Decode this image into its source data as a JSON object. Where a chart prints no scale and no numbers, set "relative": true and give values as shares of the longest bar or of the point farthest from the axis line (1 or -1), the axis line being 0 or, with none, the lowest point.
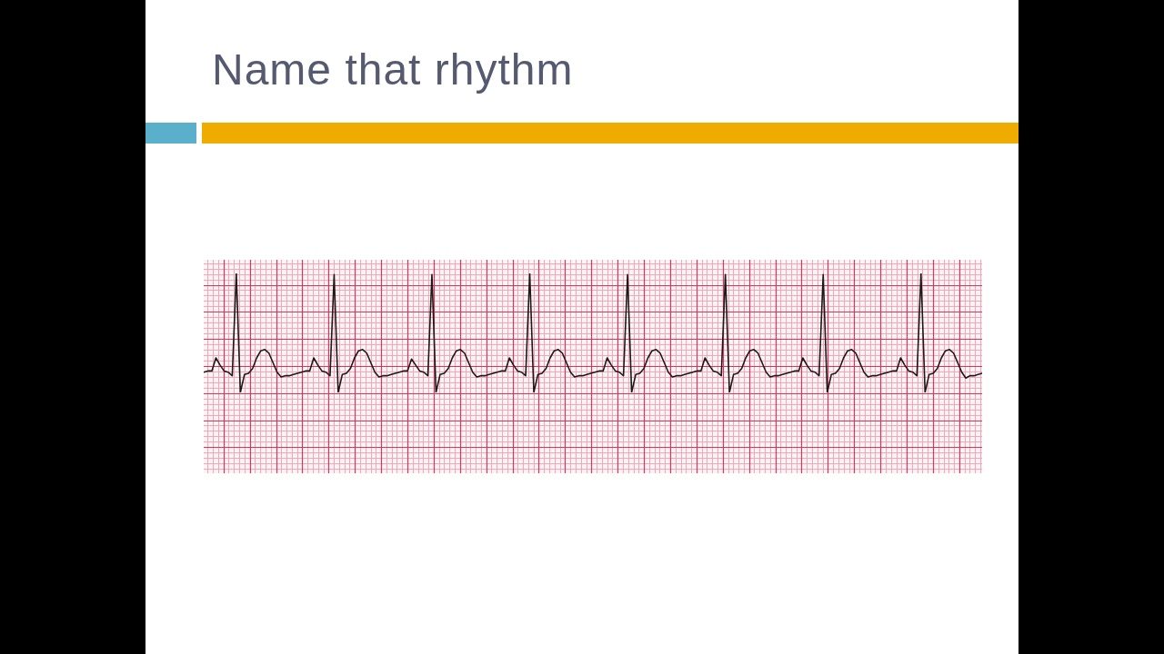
{
  "chart_data": {
    "type": "line",
    "title": "Name that rhythm",
    "relative": true,
    "grid": true,
    "color": "#1a1a1a",
    "categories": [
      null,
      null,
      null,
      null,
      null,
      null,
      null,
      null,
      null,
      null,
      null,
      null,
      null,
      null,
      null,
      null,
      null,
      null,
      null,
      null,
      null,
      null,
      null,
      null,
      null,
      null,
      null,
      null,
      null,
      null,
      null,
      null,
      null,
      null,
      null,
      null,
      null,
      null,
      null,
      null,
      null,
      null,
      null,
      null,
      null,
      null,
      null,
      null,
      null,
      null,
      null,
      null,
      null,
      null,
      null,
      null,
      null,
      null,
      null,
      null,
      null,
      null,
      null,
      null,
      null,
      null,
      null,
      null,
      null,
      null,
      null,
      null,
      null,
      null,
      null,
      null,
      null,
      null,
      null,
      null,
      null,
      null,
      null,
      null,
      null,
      null,
      null,
      null,
      null,
      null,
      null,
      null,
      null,
      null,
      null,
      null,
      null,
      null,
      null,
      null,
      null,
      null,
      null,
      null,
      null,
      null,
      null,
      null,
      null,
      null,
      null,
      null,
      null,
      null,
      null,
      null,
      null,
      null,
      null,
      null,
      null,
      null,
      null,
      null,
      null,
      null,
      null,
      null,
      null,
      null,
      null,
      null,
      null,
      null,
      null,
      null,
      null,
      null,
      null,
      null,
      null,
      null,
      null,
      null,
      null,
      null,
      null,
      null,
      null,
      null,
      null,
      null,
      null,
      null,
      null,
      null,
      null,
      null,
      null,
      null,
      null,
      null,
      null,
      null,
      null,
      null,
      null,
      null,
      null,
      null,
      null,
      null,
      null,
      null,
      null,
      null,
      null,
      null,
      null,
      null,
      null,
      null,
      null,
      null,
      null,
      null,
      null,
      null,
      null,
      null,
      null,
      null
    ],
    "values": [
      0.17,
      0.18,
      0.18,
      0.29,
      0.23,
      0.18,
      0.17,
      0.14,
      1,
      0,
      0.15,
      0.16,
      0.2,
      0.29,
      0.35,
      0.36,
      0.33,
      0.25,
      0.17,
      0.13,
      0.14,
      0.14,
      0.15,
      0.16,
      0.17,
      0.18,
      0.18,
      0.29,
      0.23,
      0.18,
      0.17,
      0.14,
      0.99,
      0,
      0.15,
      0.16,
      0.2,
      0.29,
      0.35,
      0.36,
      0.33,
      0.25,
      0.17,
      0.13,
      0.14,
      0.14,
      0.15,
      0.16,
      0.17,
      0.18,
      0.18,
      0.28,
      0.23,
      0.18,
      0.17,
      0.14,
      0.99,
      0,
      0.15,
      0.16,
      0.2,
      0.29,
      0.35,
      0.36,
      0.33,
      0.25,
      0.17,
      0.13,
      0.14,
      0.14,
      0.15,
      0.16,
      0.17,
      0.18,
      0.18,
      0.29,
      0.23,
      0.18,
      0.17,
      0.14,
      1,
      0,
      0.15,
      0.16,
      0.2,
      0.29,
      0.35,
      0.36,
      0.33,
      0.25,
      0.17,
      0.13,
      0.14,
      0.14,
      0.15,
      0.16,
      0.17,
      0.18,
      0.18,
      0.29,
      0.23,
      0.18,
      0.17,
      0.14,
      0.99,
      0,
      0.15,
      0.16,
      0.2,
      0.29,
      0.35,
      0.36,
      0.33,
      0.25,
      0.17,
      0.13,
      0.14,
      0.14,
      0.15,
      0.16,
      0.17,
      0.18,
      0.18,
      0.29,
      0.23,
      0.18,
      0.17,
      0.14,
      0.99,
      0,
      0.15,
      0.16,
      0.2,
      0.29,
      0.35,
      0.36,
      0.33,
      0.25,
      0.17,
      0.13,
      0.14,
      0.14,
      0.15,
      0.16,
      0.17,
      0.18,
      0.18,
      0.29,
      0.23,
      0.18,
      0.17,
      0.14,
      0.99,
      0,
      0.15,
      0.16,
      0.2,
      0.29,
      0.35,
      0.36,
      0.33,
      0.25,
      0.17,
      0.13,
      0.14,
      0.14,
      0.15,
      0.16,
      0.17,
      0.18,
      0.18,
      0.29,
      0.23,
      0.18,
      0.17,
      0.14,
      1,
      0,
      0.15,
      0.16,
      0.2,
      0.29,
      0.35,
      0.36,
      0.33,
      0.25,
      0.17,
      0.12,
      0.14,
      0.14,
      0.15,
      0.16
    ]
  }
}
